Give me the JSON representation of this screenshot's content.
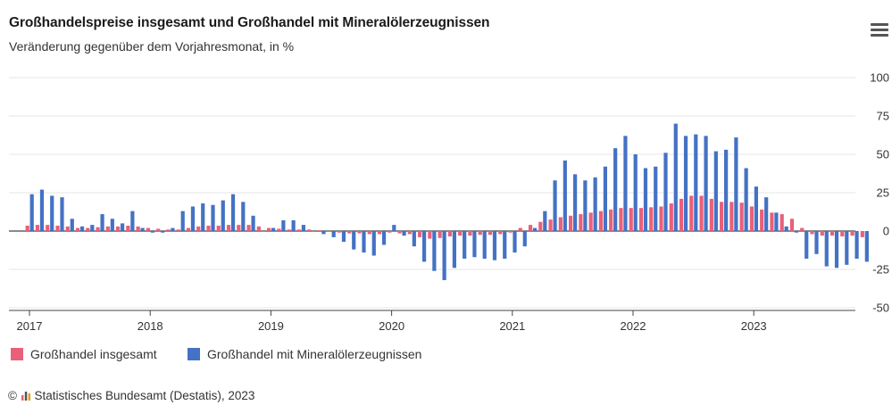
{
  "header": {
    "title": "Großhandelspreise insgesamt und Großhandel mit Mineralölerzeugnissen",
    "subtitle": "Veränderung gegenüber dem Vorjahresmonat, in %"
  },
  "menu": {
    "icon": "hamburger-menu-icon"
  },
  "credits": {
    "text": "Statistisches Bundesamt (Destatis), 2023",
    "icon": "copyright-icon"
  },
  "chart_data": {
    "type": "bar",
    "grid": true,
    "y_axis_position": "right",
    "legend_position": "bottom-left",
    "xlim_months": [
      "2017-01",
      "2023-12"
    ],
    "ylim": [
      -50,
      100
    ],
    "y_ticks": [
      -50,
      -25,
      0,
      25,
      50,
      75,
      100
    ],
    "y_tick_labels": [
      "-50",
      "-25",
      "0",
      "25",
      "50",
      "75",
      "100"
    ],
    "x_tick_labels": [
      "2017",
      "2018",
      "2019",
      "2020",
      "2021",
      "2022",
      "2023"
    ],
    "start_month": "2017-01",
    "series": [
      {
        "name": "Großhandel insgesamt",
        "color": "#e8607a",
        "values": [
          3.5,
          4,
          4,
          3.5,
          3,
          2,
          2,
          2.5,
          3,
          3,
          3.5,
          3,
          2,
          1.5,
          1,
          1,
          2,
          3,
          3.5,
          3.5,
          4,
          4,
          4,
          3,
          2,
          1.5,
          1,
          1,
          1,
          0.5,
          -0.5,
          -1,
          -1.5,
          -1.5,
          -2,
          -2,
          -1,
          -1.5,
          -2,
          -4,
          -5,
          -4.5,
          -3.5,
          -3,
          -3,
          -2.5,
          -2.5,
          -2,
          -1,
          2,
          4,
          6,
          7.5,
          9,
          10,
          11,
          12,
          13,
          14,
          15,
          15,
          15,
          15.5,
          16,
          18,
          21,
          23,
          23,
          21,
          19,
          19,
          18.5,
          16,
          14,
          12,
          11,
          8,
          2,
          -2,
          -3,
          -3,
          -3.5,
          -3,
          -4
        ]
      },
      {
        "name": "Großhandel mit Mineralölerzeugnissen",
        "color": "#4472c4",
        "values": [
          24,
          27,
          23,
          22,
          8,
          3,
          4,
          11,
          8,
          5,
          13,
          2,
          -1,
          -1,
          2,
          13,
          16,
          18,
          17,
          20,
          24,
          19,
          10,
          0,
          2,
          7,
          7,
          4,
          0,
          -2,
          -4,
          -7,
          -12,
          -14,
          -16,
          -9,
          4,
          -3,
          -10,
          -20,
          -26,
          -32,
          -24,
          -18,
          -17,
          -18,
          -19,
          -18,
          -14,
          -10,
          2,
          13,
          33,
          46,
          37,
          33,
          35,
          42,
          54,
          62,
          50,
          41,
          42,
          51,
          70,
          62,
          63,
          62,
          52,
          53,
          61,
          41,
          29,
          22,
          12,
          3,
          -1,
          -18,
          -15,
          -23,
          -24,
          -22,
          -18,
          -20
        ]
      }
    ]
  }
}
